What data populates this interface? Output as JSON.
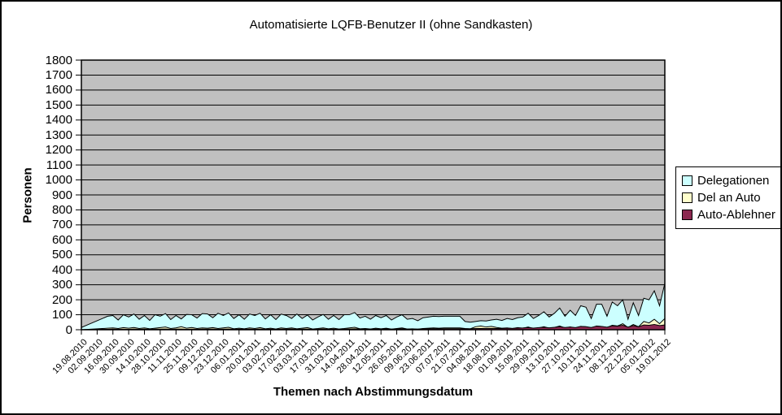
{
  "chart_data": {
    "type": "area",
    "title": "Automatisierte LQFB-Benutzer II (ohne Sandkasten)",
    "xlabel": "Themen nach Abstimmungsdatum",
    "ylabel": "Personen",
    "ylim": [
      0,
      1800
    ],
    "ytick_step": 100,
    "ytick_labels": [
      "0",
      "100",
      "200",
      "300",
      "400",
      "500",
      "600",
      "700",
      "800",
      "900",
      "1000",
      "1100",
      "1200",
      "1300",
      "1400",
      "1500",
      "1600",
      "1700",
      "1800"
    ],
    "grid": "horizontal black lines every 100",
    "plot_bg_color": "#C0C0C0",
    "legend_position": "right-outside",
    "x_tick_labels": [
      "19.08.2010",
      "02.09.2010",
      "16.09.2010",
      "30.09.2010",
      "14.10.2010",
      "28.10.2010",
      "11.11.2010",
      "25.11.2010",
      "09.12.2010",
      "23.12.2010",
      "06.01.2011",
      "20.01.2011",
      "03.02.2011",
      "17.02.2011",
      "03.03.2011",
      "17.03.2011",
      "31.03.2011",
      "14.04.2011",
      "28.04.2011",
      "12.05.2011",
      "26.05.2011",
      "09.06.2011",
      "23.06.2011",
      "07.07.2011",
      "21.07.2011",
      "04.08.2011",
      "18.08.2011",
      "01.09.2011",
      "15.09.2011",
      "29.09.2011",
      "13.10.2011",
      "27.10.2011",
      "10.11.2011",
      "24.11.2011",
      "08.12.2011",
      "22.12.2011",
      "05.01.2012",
      "19.01.2012"
    ],
    "points_per_tick_interval": 3,
    "series": [
      {
        "name": "Delegationen",
        "color": "#CCFFFF",
        "values": [
          15,
          30,
          45,
          60,
          75,
          90,
          95,
          65,
          100,
          85,
          105,
          70,
          95,
          62,
          100,
          90,
          108,
          68,
          95,
          72,
          102,
          100,
          78,
          108,
          105,
          80,
          110,
          95,
          112,
          75,
          100,
          70,
          105,
          95,
          110,
          72,
          100,
          68,
          104,
          95,
          75,
          105,
          75,
          98,
          65,
          85,
          102,
          70,
          95,
          68,
          100,
          100,
          115,
          78,
          90,
          70,
          95,
          80,
          95,
          65,
          85,
          100,
          70,
          75,
          60,
          80,
          85,
          90,
          88,
          90,
          90,
          90,
          90,
          55,
          50,
          55,
          60,
          58,
          65,
          70,
          62,
          75,
          68,
          80,
          85,
          110,
          75,
          95,
          120,
          85,
          110,
          145,
          90,
          130,
          95,
          160,
          150,
          75,
          170,
          170,
          90,
          185,
          160,
          200,
          70,
          180,
          95,
          210,
          200,
          260,
          160,
          310
        ]
      },
      {
        "name": "Del an Auto",
        "color": "#FFFFCC",
        "values": [
          0,
          2,
          4,
          6,
          8,
          10,
          12,
          8,
          14,
          10,
          15,
          8,
          12,
          6,
          10,
          14,
          18,
          8,
          12,
          20,
          10,
          15,
          8,
          12,
          10,
          14,
          8,
          12,
          16,
          6,
          10,
          6,
          12,
          8,
          14,
          6,
          10,
          5,
          12,
          8,
          12,
          6,
          10,
          14,
          5,
          8,
          12,
          6,
          10,
          5,
          8,
          12,
          16,
          6,
          8,
          5,
          10,
          6,
          10,
          4,
          8,
          12,
          5,
          6,
          4,
          8,
          10,
          12,
          10,
          12,
          12,
          12,
          12,
          8,
          6,
          20,
          25,
          18,
          22,
          15,
          10,
          12,
          8,
          14,
          10,
          18,
          8,
          12,
          20,
          10,
          15,
          25,
          12,
          18,
          10,
          22,
          20,
          12,
          25,
          22,
          15,
          30,
          25,
          40,
          15,
          35,
          20,
          55,
          45,
          70,
          40,
          75
        ]
      },
      {
        "name": "Auto-Ablehner",
        "color": "#8C2850",
        "values": [
          0,
          1,
          2,
          2,
          3,
          3,
          4,
          3,
          4,
          3,
          5,
          3,
          4,
          3,
          4,
          4,
          5,
          3,
          4,
          5,
          3,
          4,
          3,
          4,
          4,
          5,
          3,
          4,
          5,
          3,
          4,
          3,
          4,
          3,
          5,
          3,
          4,
          3,
          4,
          4,
          5,
          3,
          4,
          5,
          3,
          4,
          5,
          3,
          4,
          3,
          4,
          5,
          6,
          4,
          5,
          4,
          5,
          4,
          6,
          4,
          5,
          6,
          4,
          5,
          4,
          6,
          6,
          7,
          6,
          7,
          7,
          7,
          7,
          6,
          6,
          8,
          9,
          8,
          9,
          8,
          8,
          10,
          9,
          11,
          12,
          14,
          11,
          14,
          16,
          13,
          16,
          20,
          15,
          18,
          14,
          22,
          20,
          15,
          24,
          22,
          17,
          26,
          24,
          30,
          18,
          28,
          20,
          32,
          30,
          35,
          28,
          32
        ]
      }
    ]
  }
}
